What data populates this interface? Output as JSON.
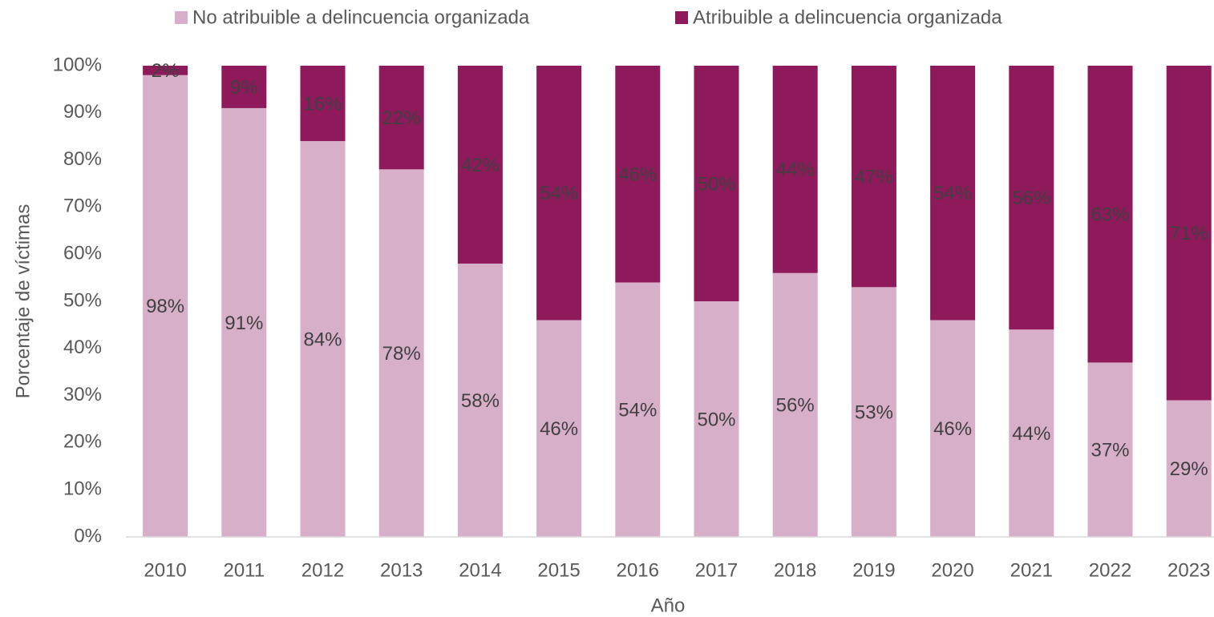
{
  "chart_data": {
    "type": "stacked_bar",
    "x_label": "Año",
    "y_label": "Porcentaje de víctimas",
    "categories": [
      "2010",
      "2011",
      "2012",
      "2013",
      "2014",
      "2015",
      "2016",
      "2017",
      "2018",
      "2019",
      "2020",
      "2021",
      "2022",
      "2023"
    ],
    "series": [
      {
        "name": "No atribuible a delincuencia organizada",
        "color": "#d8afc8",
        "values": [
          98,
          91,
          84,
          78,
          58,
          46,
          54,
          50,
          56,
          53,
          46,
          44,
          37,
          29
        ],
        "value_labels": [
          "98%",
          "91%",
          "84%",
          "78%",
          "58%",
          "46%",
          "54%",
          "50%",
          "56%",
          "53%",
          "46%",
          "44%",
          "37%",
          "29%"
        ]
      },
      {
        "name": "Atribuible a delincuencia organizada",
        "color": "#8e1a5c",
        "values": [
          2,
          9,
          16,
          22,
          42,
          54,
          46,
          50,
          44,
          47,
          54,
          56,
          63,
          71
        ],
        "value_labels": [
          "2%",
          "9%",
          "16%",
          "22%",
          "42%",
          "54%",
          "46%",
          "50%",
          "44%",
          "47%",
          "54%",
          "56%",
          "63%",
          "71%"
        ]
      }
    ],
    "ylim": [
      0,
      100
    ],
    "yticks": [
      {
        "value": 0,
        "label": "0%"
      },
      {
        "value": 10,
        "label": "10%"
      },
      {
        "value": 20,
        "label": "20%"
      },
      {
        "value": 30,
        "label": "30%"
      },
      {
        "value": 40,
        "label": "40%"
      },
      {
        "value": 50,
        "label": "50%"
      },
      {
        "value": 60,
        "label": "60%"
      },
      {
        "value": 70,
        "label": "70%"
      },
      {
        "value": 80,
        "label": "80%"
      },
      {
        "value": 90,
        "label": "90%"
      },
      {
        "value": 100,
        "label": "100%"
      }
    ],
    "legend": "top"
  }
}
